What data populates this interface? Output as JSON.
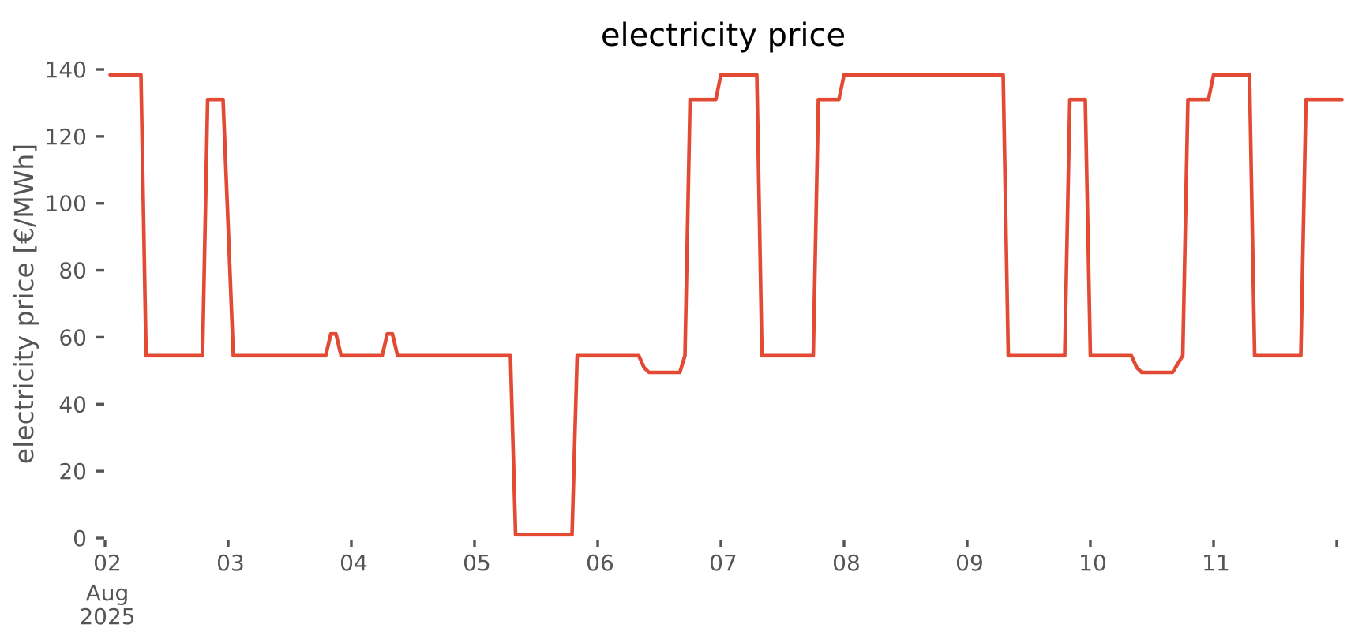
{
  "chart_data": {
    "type": "line",
    "title": "electricity price",
    "ylabel": "electricity price [€/MWh]",
    "unit": "€/MWh",
    "line_color": "#e24a33",
    "text_color": "#555555",
    "title_color": "#000000",
    "grid": false,
    "legend": null,
    "ylim": [
      0,
      140
    ],
    "yticks": [
      0,
      20,
      40,
      60,
      80,
      100,
      120,
      140
    ],
    "xticks": [
      {
        "label": "02",
        "day": 0
      },
      {
        "label": "03",
        "day": 1
      },
      {
        "label": "04",
        "day": 2
      },
      {
        "label": "05",
        "day": 3
      },
      {
        "label": "06",
        "day": 4
      },
      {
        "label": "07",
        "day": 5
      },
      {
        "label": "08",
        "day": 6
      },
      {
        "label": "09",
        "day": 7
      },
      {
        "label": "10",
        "day": 8
      },
      {
        "label": "11",
        "day": 9
      },
      {
        "label": "",
        "day": 10
      }
    ],
    "x_offset": {
      "month": "Aug",
      "year": "2025"
    },
    "x_start": "2025-08-02T01:00",
    "x_step_hours": 1,
    "x_end": "2025-08-12T01:00",
    "values": [
      138.4,
      138.4,
      138.4,
      138.4,
      138.4,
      138.4,
      138.4,
      54.5,
      54.5,
      54.5,
      54.5,
      54.5,
      54.5,
      54.5,
      54.5,
      54.5,
      54.5,
      54.5,
      54.5,
      131,
      131,
      131,
      131,
      93,
      54.5,
      54.5,
      54.5,
      54.5,
      54.5,
      54.5,
      54.5,
      54.5,
      54.5,
      54.5,
      54.5,
      54.5,
      54.5,
      54.5,
      54.5,
      54.5,
      54.5,
      54.5,
      54.5,
      61,
      61,
      54.5,
      54.5,
      54.5,
      54.5,
      54.5,
      54.5,
      54.5,
      54.5,
      54.5,
      61,
      61,
      54.5,
      54.5,
      54.5,
      54.5,
      54.5,
      54.5,
      54.5,
      54.5,
      54.5,
      54.5,
      54.5,
      54.5,
      54.5,
      54.5,
      54.5,
      54.5,
      54.5,
      54.5,
      54.5,
      54.5,
      54.5,
      54.5,
      54.5,
      1,
      1,
      1,
      1,
      1,
      1,
      1,
      1,
      1,
      1,
      1,
      1,
      54.5,
      54.5,
      54.5,
      54.5,
      54.5,
      54.5,
      54.5,
      54.5,
      54.5,
      54.5,
      54.5,
      54.5,
      54.5,
      51,
      49.5,
      49.5,
      49.5,
      49.5,
      49.5,
      49.5,
      49.5,
      54.5,
      131,
      131,
      131,
      131,
      131,
      131,
      138.4,
      138.4,
      138.4,
      138.4,
      138.4,
      138.4,
      138.4,
      138.4,
      54.5,
      54.5,
      54.5,
      54.5,
      54.5,
      54.5,
      54.5,
      54.5,
      54.5,
      54.5,
      54.5,
      131,
      131,
      131,
      131,
      131,
      138.4,
      138.4,
      138.4,
      138.4,
      138.4,
      138.4,
      138.4,
      138.4,
      138.4,
      138.4,
      138.4,
      138.4,
      138.4,
      138.4,
      138.4,
      138.4,
      138.4,
      138.4,
      138.4,
      138.4,
      138.4,
      138.4,
      138.4,
      138.4,
      138.4,
      138.4,
      138.4,
      138.4,
      138.4,
      138.4,
      138.4,
      138.4,
      54.5,
      54.5,
      54.5,
      54.5,
      54.5,
      54.5,
      54.5,
      54.5,
      54.5,
      54.5,
      54.5,
      54.5,
      131,
      131,
      131,
      131,
      54.5,
      54.5,
      54.5,
      54.5,
      54.5,
      54.5,
      54.5,
      54.5,
      54.5,
      51,
      49.5,
      49.5,
      49.5,
      49.5,
      49.5,
      49.5,
      49.5,
      52,
      54.5,
      131,
      131,
      131,
      131,
      131,
      138.4,
      138.4,
      138.4,
      138.4,
      138.4,
      138.4,
      138.4,
      138.4,
      54.5,
      54.5,
      54.5,
      54.5,
      54.5,
      54.5,
      54.5,
      54.5,
      54.5,
      54.5,
      131,
      131,
      131,
      131,
      131,
      131,
      131,
      131
    ]
  }
}
